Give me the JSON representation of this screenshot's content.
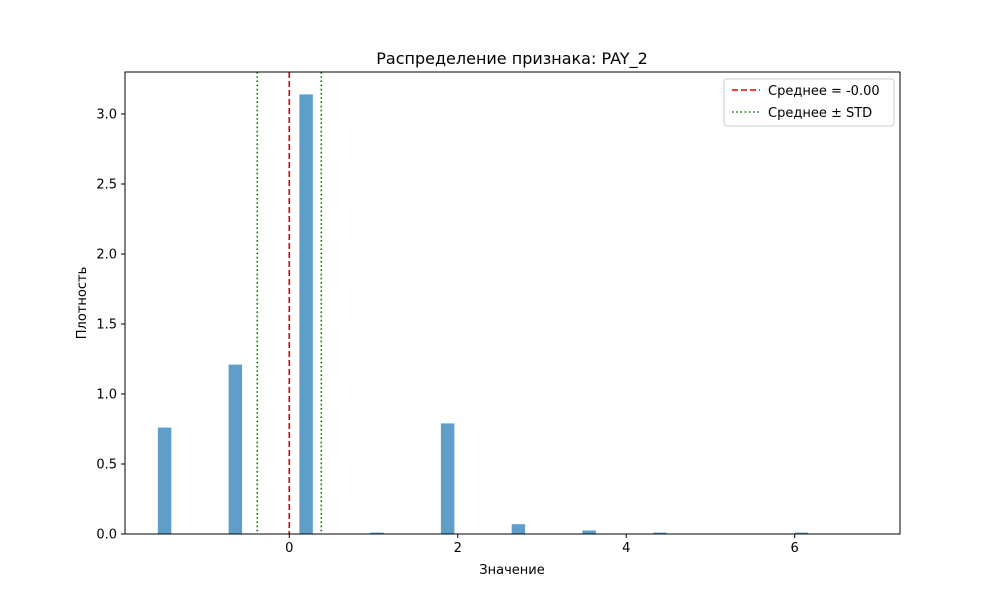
{
  "chart_data": {
    "type": "bar",
    "title": "Распределение признака: PAY_2",
    "xlabel": "Значение",
    "ylabel": "Плотность",
    "xlim": [
      -1.95,
      7.25
    ],
    "ylim": [
      0,
      3.3
    ],
    "grid": false,
    "bar_width": 0.16,
    "bar_color": "#5f9ec8",
    "x_ticks": [
      {
        "value": 0,
        "label": "0"
      },
      {
        "value": 2,
        "label": "2"
      },
      {
        "value": 4,
        "label": "4"
      },
      {
        "value": 6,
        "label": "6"
      }
    ],
    "y_ticks": [
      {
        "value": 0.0,
        "label": "0.0"
      },
      {
        "value": 0.5,
        "label": "0.5"
      },
      {
        "value": 1.0,
        "label": "1.0"
      },
      {
        "value": 1.5,
        "label": "1.5"
      },
      {
        "value": 2.0,
        "label": "2.0"
      },
      {
        "value": 2.5,
        "label": "2.5"
      },
      {
        "value": 3.0,
        "label": "3.0"
      }
    ],
    "bars": [
      {
        "x": -1.48,
        "y": 0.76
      },
      {
        "x": -0.64,
        "y": 1.21
      },
      {
        "x": 0.2,
        "y": 3.14
      },
      {
        "x": 1.04,
        "y": 0.01
      },
      {
        "x": 1.88,
        "y": 0.79
      },
      {
        "x": 2.72,
        "y": 0.07
      },
      {
        "x": 3.56,
        "y": 0.025
      },
      {
        "x": 4.4,
        "y": 0.01
      },
      {
        "x": 6.08,
        "y": 0.01
      }
    ],
    "reference_lines": [
      {
        "kind": "mean",
        "x": 0.0,
        "color": "#e00000",
        "style": "dashed"
      },
      {
        "kind": "mean_minus_std",
        "x": -0.38,
        "color": "#008000",
        "style": "dotted"
      },
      {
        "kind": "mean_plus_std",
        "x": 0.38,
        "color": "#008000",
        "style": "dotted"
      }
    ],
    "legend": {
      "placement": "top-right",
      "entries": [
        {
          "label": "Среднее = -0.00",
          "color": "#e00000",
          "style": "dashed"
        },
        {
          "label": "Среднее ± STD",
          "color": "#008000",
          "style": "dotted"
        }
      ]
    }
  }
}
